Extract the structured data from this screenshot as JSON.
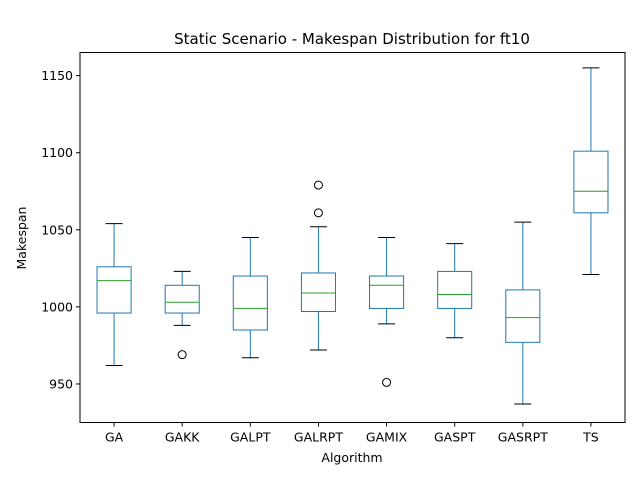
{
  "chart_data": {
    "type": "box",
    "title": "Static Scenario - Makespan Distribution for ft10",
    "xlabel": "Algorithm",
    "ylabel": "Makespan",
    "ylim": [
      925,
      1165
    ],
    "yticks": [
      950,
      1000,
      1050,
      1100,
      1150
    ],
    "grid": false,
    "legend": "none",
    "colors": {
      "box": "#1f77b4",
      "median": "#2ca02c",
      "whisker": "#1f77b4",
      "cap": "#000000",
      "outlier": "#000000"
    },
    "categories": [
      "GA",
      "GAKK",
      "GALPT",
      "GALRPT",
      "GAMIX",
      "GASPT",
      "GASRPT",
      "TS"
    ],
    "boxes": [
      {
        "name": "GA",
        "whislo": 962,
        "q1": 996,
        "med": 1017,
        "q3": 1026,
        "whishi": 1054,
        "fliers": []
      },
      {
        "name": "GAKK",
        "whislo": 988,
        "q1": 996,
        "med": 1003,
        "q3": 1014,
        "whishi": 1023,
        "fliers": [
          969
        ]
      },
      {
        "name": "GALPT",
        "whislo": 967,
        "q1": 985,
        "med": 999,
        "q3": 1020,
        "whishi": 1045,
        "fliers": []
      },
      {
        "name": "GALRPT",
        "whislo": 972,
        "q1": 997,
        "med": 1009,
        "q3": 1022,
        "whishi": 1052,
        "fliers": [
          1061,
          1079
        ]
      },
      {
        "name": "GAMIX",
        "whislo": 989,
        "q1": 999,
        "med": 1014,
        "q3": 1020,
        "whishi": 1045,
        "fliers": [
          951
        ]
      },
      {
        "name": "GASPT",
        "whislo": 980,
        "q1": 999,
        "med": 1008,
        "q3": 1023,
        "whishi": 1041,
        "fliers": []
      },
      {
        "name": "GASRPT",
        "whislo": 937,
        "q1": 977,
        "med": 993,
        "q3": 1011,
        "whishi": 1055,
        "fliers": []
      },
      {
        "name": "TS",
        "whislo": 1021,
        "q1": 1061,
        "med": 1075,
        "q3": 1101,
        "whishi": 1155,
        "fliers": []
      }
    ]
  }
}
